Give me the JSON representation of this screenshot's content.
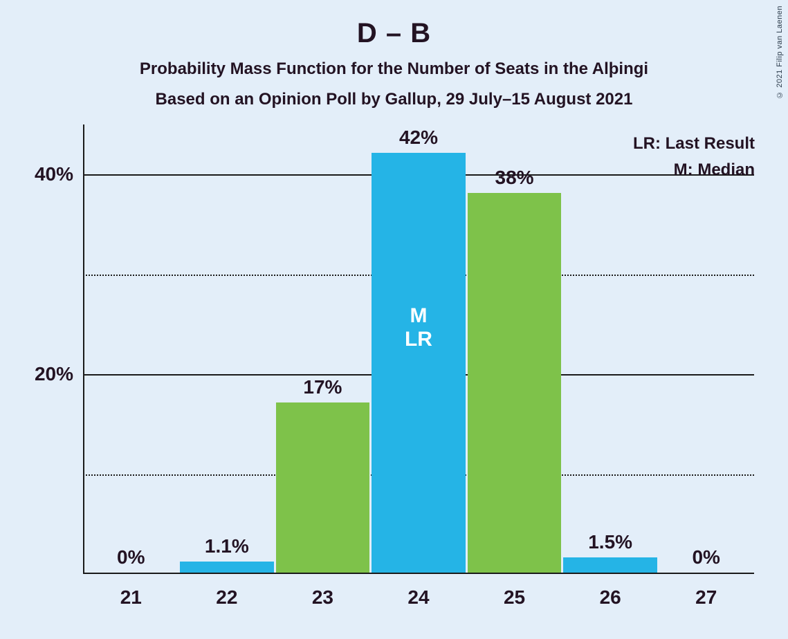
{
  "chart": {
    "type": "bar",
    "title": "D – B",
    "subtitle1": "Probability Mass Function for the Number of Seats in the Alþingi",
    "subtitle2": "Based on an Opinion Poll by Gallup, 29 July–15 August 2021",
    "background_color": "#e3eef9",
    "text_color": "#231323",
    "colors": {
      "blue": "#25b4e6",
      "green": "#7ec24a"
    },
    "y_axis": {
      "min": 0,
      "max": 45,
      "major_ticks": [
        {
          "value": 20,
          "label": "20%"
        },
        {
          "value": 40,
          "label": "40%"
        }
      ],
      "minor_ticks": [
        10,
        30
      ]
    },
    "x_axis": {
      "categories": [
        "21",
        "22",
        "23",
        "24",
        "25",
        "26",
        "27"
      ]
    },
    "bars": [
      {
        "x": "21",
        "value": 0,
        "label": "0%",
        "color": "blue"
      },
      {
        "x": "22",
        "value": 1.1,
        "label": "1.1%",
        "color": "blue"
      },
      {
        "x": "23",
        "value": 17,
        "label": "17%",
        "color": "green"
      },
      {
        "x": "24",
        "value": 42,
        "label": "42%",
        "color": "blue",
        "inner_labels": [
          "M",
          "LR"
        ]
      },
      {
        "x": "25",
        "value": 38,
        "label": "38%",
        "color": "green"
      },
      {
        "x": "26",
        "value": 1.5,
        "label": "1.5%",
        "color": "blue"
      },
      {
        "x": "27",
        "value": 0,
        "label": "0%",
        "color": "blue"
      }
    ],
    "bar_width_ratio": 0.98,
    "legend": {
      "lr": "LR: Last Result",
      "m": "M: Median"
    },
    "copyright": "© 2021 Filip van Laenen"
  }
}
